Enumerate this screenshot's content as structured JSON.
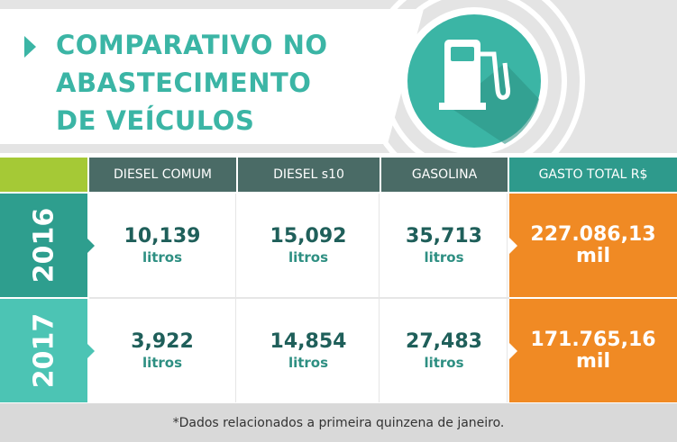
{
  "header": {
    "title_lines": [
      "COMPARATIVO NO",
      "ABASTECIMENTO",
      "DE VEÍCULOS"
    ]
  },
  "table": {
    "columns": [
      "DIESEL COMUM",
      "DIESEL s10",
      "GASOLINA",
      "GASTO TOTAL R$"
    ],
    "rows": [
      {
        "year": "2016",
        "cells": [
          {
            "value": "10,139",
            "unit": "litros"
          },
          {
            "value": "15,092",
            "unit": "litros"
          },
          {
            "value": "35,713",
            "unit": "litros"
          }
        ],
        "total": {
          "value": "227.086,13",
          "unit": "mil"
        }
      },
      {
        "year": "2017",
        "cells": [
          {
            "value": "3,922",
            "unit": "litros"
          },
          {
            "value": "14,854",
            "unit": "litros"
          },
          {
            "value": "27,483",
            "unit": "litros"
          }
        ],
        "total": {
          "value": "171.765,16",
          "unit": "mil"
        }
      }
    ]
  },
  "footnote": "*Dados relacionados a primeira quinzena de janeiro."
}
